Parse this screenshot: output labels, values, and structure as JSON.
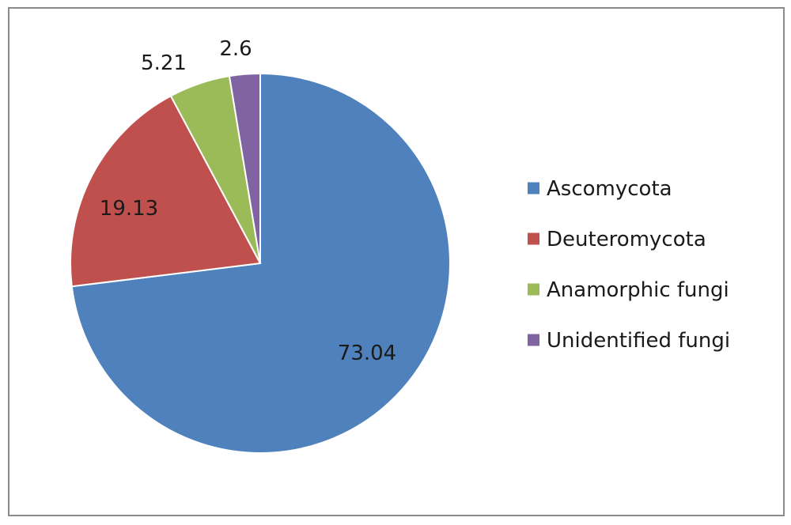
{
  "chart_data": {
    "type": "pie",
    "title": "",
    "slices": [
      {
        "label": "Ascomycota",
        "value": 73.04,
        "value_label": "73.04",
        "color": "#4f81bd"
      },
      {
        "label": "Deuteromycota",
        "value": 19.13,
        "value_label": "19.13",
        "color": "#c0504d"
      },
      {
        "label": "Anamorphic fungi",
        "value": 5.21,
        "value_label": "5.21",
        "color": "#9bbb59"
      },
      {
        "label": "Unidentified fungi",
        "value": 2.6,
        "value_label": "2.6",
        "color": "#8064a2"
      }
    ],
    "legend_position": "right",
    "start_angle": "12 o'clock",
    "direction": "clockwise"
  }
}
